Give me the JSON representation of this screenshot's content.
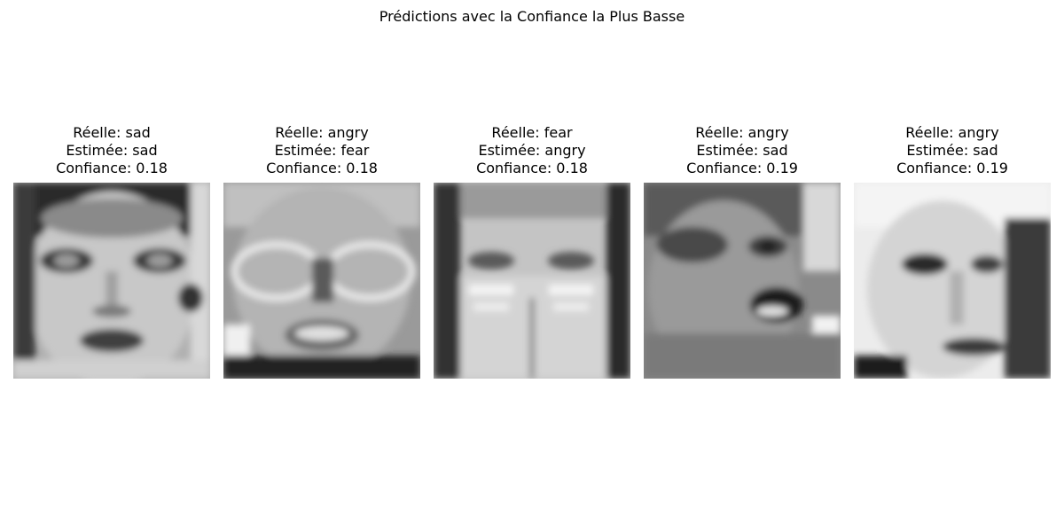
{
  "figure": {
    "title": "Prédictions avec la Confiance la Plus Basse",
    "true_prefix": "Réelle: ",
    "pred_prefix": "Estimée: ",
    "conf_prefix": "Confiance: ",
    "panels": [
      {
        "true_label": "sad",
        "predicted_label": "sad",
        "confidence": "0.18",
        "line1": "Réelle: sad",
        "line2": "Estimée: sad",
        "line3": "Confiance: 0.18",
        "image": "grayscale-face-1"
      },
      {
        "true_label": "angry",
        "predicted_label": "fear",
        "confidence": "0.18",
        "line1": "Réelle: angry",
        "line2": "Estimée: fear",
        "line3": "Confiance: 0.18",
        "image": "grayscale-face-2"
      },
      {
        "true_label": "fear",
        "predicted_label": "angry",
        "confidence": "0.18",
        "line1": "Réelle: fear",
        "line2": "Estimée: angry",
        "line3": "Confiance: 0.18",
        "image": "grayscale-face-3"
      },
      {
        "true_label": "angry",
        "predicted_label": "sad",
        "confidence": "0.19",
        "line1": "Réelle: angry",
        "line2": "Estimée: sad",
        "line3": "Confiance: 0.19",
        "image": "grayscale-face-4"
      },
      {
        "true_label": "angry",
        "predicted_label": "sad",
        "confidence": "0.19",
        "line1": "Réelle: angry",
        "line2": "Estimée: sad",
        "line3": "Confiance: 0.19",
        "image": "grayscale-face-5"
      }
    ]
  }
}
